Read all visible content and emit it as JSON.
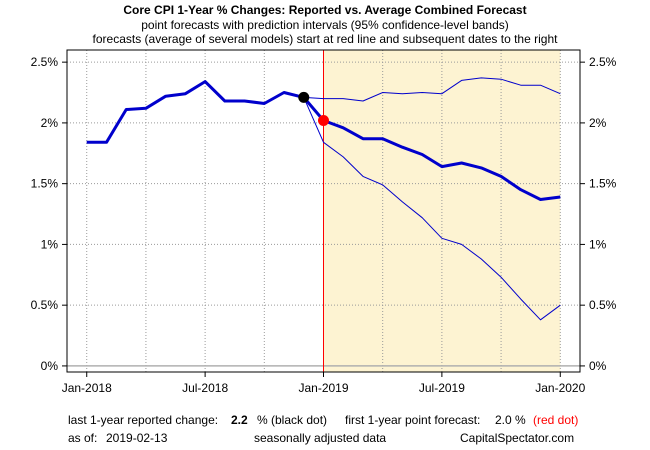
{
  "chart_data": {
    "type": "line",
    "title": "Core CPI 1-Year % Changes: Reported vs. Average Combined Forecast",
    "subtitle_1": "point forecasts with prediction intervals (95% confidence-level bands)",
    "subtitle_2": "forecasts (average of several models) start at red line and subsequent dates to the right",
    "xlabel": "",
    "ylabel": "",
    "x_ticks": [
      "Jan-2018",
      "Jul-2018",
      "Jan-2019",
      "Jul-2019",
      "Jan-2020"
    ],
    "y_ticks": [
      "0%",
      "0.5%",
      "1%",
      "1.5%",
      "2%",
      "2.5%"
    ],
    "xlim": [
      "2017-12",
      "2020-02"
    ],
    "ylim": [
      -0.05,
      2.6
    ],
    "grid": true,
    "forecast_start": "2019-01",
    "forecast_shading": "2019-01 to 2020-01",
    "colors": {
      "series": "#0000cc",
      "forecast_line": "#ff0000",
      "shade": "#fdf3d2",
      "zero_line": "#b0b0b0",
      "grid": "#9a9a9a"
    },
    "series": [
      {
        "role": "reported",
        "x": [
          "2018-01",
          "2018-02",
          "2018-03",
          "2018-04",
          "2018-05",
          "2018-06",
          "2018-07",
          "2018-08",
          "2018-09",
          "2018-10",
          "2018-11",
          "2018-12"
        ],
        "values": [
          1.84,
          1.84,
          2.11,
          2.12,
          2.22,
          2.24,
          2.34,
          2.18,
          2.18,
          2.16,
          2.25,
          2.21
        ]
      },
      {
        "role": "point-forecast",
        "x": [
          "2018-12",
          "2019-01",
          "2019-02",
          "2019-03",
          "2019-04",
          "2019-05",
          "2019-06",
          "2019-07",
          "2019-08",
          "2019-09",
          "2019-10",
          "2019-11",
          "2019-12",
          "2020-01"
        ],
        "values": [
          2.21,
          2.02,
          1.96,
          1.87,
          1.87,
          1.8,
          1.74,
          1.64,
          1.67,
          1.63,
          1.56,
          1.45,
          1.37,
          1.39
        ]
      },
      {
        "role": "upper-band",
        "x": [
          "2018-12",
          "2019-01",
          "2019-02",
          "2019-03",
          "2019-04",
          "2019-05",
          "2019-06",
          "2019-07",
          "2019-08",
          "2019-09",
          "2019-10",
          "2019-11",
          "2019-12",
          "2020-01"
        ],
        "values": [
          2.21,
          2.2,
          2.2,
          2.18,
          2.25,
          2.24,
          2.25,
          2.24,
          2.35,
          2.37,
          2.36,
          2.31,
          2.31,
          2.24
        ]
      },
      {
        "role": "lower-band",
        "x": [
          "2018-12",
          "2019-01",
          "2019-02",
          "2019-03",
          "2019-04",
          "2019-05",
          "2019-06",
          "2019-07",
          "2019-08",
          "2019-09",
          "2019-10",
          "2019-11",
          "2019-12",
          "2020-01"
        ],
        "values": [
          2.21,
          1.84,
          1.72,
          1.56,
          1.49,
          1.35,
          1.22,
          1.05,
          1.0,
          0.88,
          0.73,
          0.55,
          0.38,
          0.5
        ]
      }
    ],
    "points": [
      {
        "role": "last-reported",
        "x": "2018-12",
        "value": 2.21,
        "color": "#000000"
      },
      {
        "role": "first-forecast",
        "x": "2019-01",
        "value": 2.02,
        "color": "#ff0000"
      }
    ]
  },
  "footer": {
    "last_reported_label": "last 1-year reported change:",
    "last_reported_value": "2.2",
    "last_reported_suffix": "% (black dot)",
    "first_forecast_label": "first 1-year point forecast:",
    "first_forecast_value": "2.0 %",
    "first_forecast_suffix": "(red dot)",
    "as_of_label": "as of:",
    "as_of_value": "2019-02-13",
    "adjustment_note": "seasonally adjusted data",
    "source": "CapitalSpectator.com"
  }
}
